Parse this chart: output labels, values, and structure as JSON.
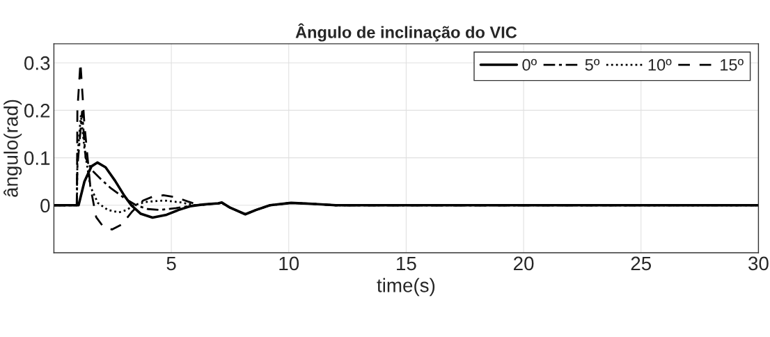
{
  "chart_data": {
    "type": "line",
    "title": "Ângulo de inclinação do VIC",
    "xlabel": "time(s)",
    "ylabel": "ângulo(rad)",
    "xlim": [
      0,
      30
    ],
    "xticks": [
      5,
      10,
      15,
      20,
      25,
      30
    ],
    "ylim": [
      -0.1,
      0.34
    ],
    "yticks": [
      0,
      0.1,
      0.2,
      0.3
    ],
    "grid": true,
    "legend": "top right",
    "series": [
      {
        "name": "0º",
        "color": "#000000",
        "line_style": "solid",
        "x": [
          0,
          1.05,
          1.3,
          1.6,
          1.85,
          2.2,
          2.6,
          3.0,
          3.3,
          3.7,
          4.2,
          4.8,
          5.3,
          5.8,
          6.4,
          7.0,
          7.15,
          7.5,
          8.15,
          8.6,
          9.2,
          10.1,
          11,
          12,
          13,
          30
        ],
        "values": [
          0,
          0,
          0.05,
          0.082,
          0.09,
          0.08,
          0.052,
          0.02,
          0.0,
          -0.018,
          -0.026,
          -0.02,
          -0.01,
          -0.002,
          0.002,
          0.004,
          0.006,
          -0.005,
          -0.019,
          -0.01,
          0.0,
          0.005,
          0.003,
          0.0,
          0.0,
          0.0
        ]
      },
      {
        "name": "5º",
        "color": "#000000",
        "line_style": "dashdot",
        "x": [
          0,
          0.97,
          1.0,
          1.2,
          1.35,
          1.6,
          2.0,
          2.4,
          3.0,
          3.5,
          4.0,
          4.5,
          5.2,
          6.0,
          7.0,
          7.15,
          7.5,
          8.15,
          8.6,
          9.2,
          10.1,
          11,
          12,
          13,
          30
        ],
        "values": [
          0,
          0,
          0.08,
          0.197,
          0.1,
          0.075,
          0.055,
          0.037,
          0.015,
          0.0,
          -0.008,
          -0.01,
          -0.006,
          0.0,
          0.004,
          0.005,
          -0.005,
          -0.019,
          -0.01,
          0.0,
          0.005,
          0.003,
          0.0,
          0.0,
          0.0
        ]
      },
      {
        "name": "10º",
        "color": "#000000",
        "line_style": "dotted",
        "x": [
          0,
          0.98,
          1.0,
          1.15,
          1.3,
          1.55,
          1.87,
          2.3,
          2.77,
          3.1,
          3.4,
          3.9,
          4.7,
          5.4,
          6.0,
          7.0,
          7.15,
          7.5,
          8.15,
          8.6,
          9.2,
          10.1,
          11,
          12,
          13,
          30
        ],
        "values": [
          0,
          0,
          0.1,
          0.19,
          0.12,
          0.04,
          0.005,
          -0.01,
          -0.015,
          -0.01,
          0.0,
          0.007,
          0.01,
          0.006,
          0.0,
          0.004,
          0.005,
          -0.005,
          -0.019,
          -0.01,
          0.0,
          0.005,
          0.003,
          0.0,
          0.0,
          0.0
        ]
      },
      {
        "name": "15º",
        "color": "#000000",
        "line_style": "dashed",
        "x": [
          0,
          0.98,
          1.0,
          1.13,
          1.3,
          1.55,
          1.8,
          2.1,
          2.48,
          2.9,
          3.3,
          3.8,
          4.2,
          4.66,
          5.2,
          5.7,
          6.2,
          7.0,
          7.15,
          7.5,
          8.15,
          8.6,
          9.2,
          10.1,
          11,
          12,
          13,
          30
        ],
        "values": [
          0,
          0,
          0.2,
          0.3,
          0.17,
          0.04,
          -0.025,
          -0.045,
          -0.051,
          -0.04,
          -0.015,
          0.01,
          0.018,
          0.021,
          0.017,
          0.008,
          0.0,
          0.004,
          0.005,
          -0.005,
          -0.019,
          -0.01,
          0.0,
          0.005,
          0.003,
          0.0,
          0.0,
          0.0
        ]
      }
    ]
  }
}
